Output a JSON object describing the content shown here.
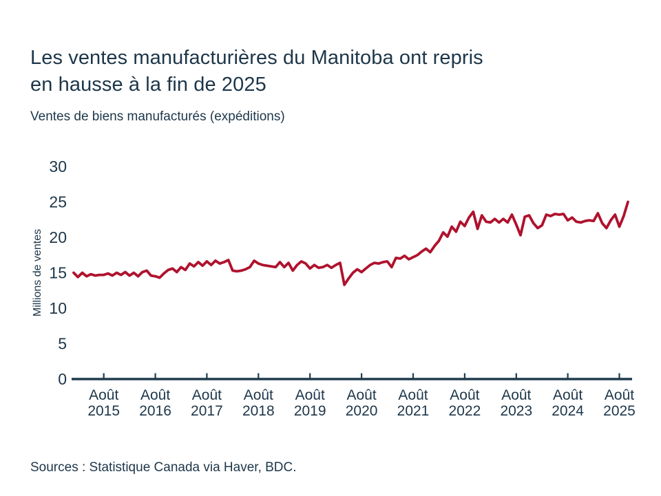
{
  "header": {
    "title_line1": "Les ventes manufacturières du Manitoba ont repris",
    "title_line2": "en hausse à la fin de 2025",
    "subtitle": "Ventes de biens manufacturés (expéditions)"
  },
  "footer": {
    "sources": "Sources : Statistique Canada via Haver, BDC."
  },
  "colors": {
    "line": "#AF122E",
    "ink": "#1D3649",
    "axis": "#1F3B4D",
    "background": "#FFFFFF"
  },
  "chart_data": {
    "type": "line",
    "title": "Les ventes manufacturières du Manitoba ont repris en hausse à la fin de 2025",
    "subtitle": "Ventes de biens manufacturés (expéditions)",
    "ylabel": "Millions de ventes",
    "xlabel": "",
    "ylim": [
      0,
      30
    ],
    "yticks": [
      0,
      5,
      10,
      15,
      20,
      25,
      30
    ],
    "grid": false,
    "legend": "none",
    "frequency": "monthly",
    "x_start": "Janvier 2015",
    "x_end": "Octobre 2025",
    "xticks": [
      {
        "month": "Août",
        "year": "2015"
      },
      {
        "month": "Août",
        "year": "2016"
      },
      {
        "month": "Août",
        "year": "2017"
      },
      {
        "month": "Août",
        "year": "2018"
      },
      {
        "month": "Août",
        "year": "2019"
      },
      {
        "month": "Août",
        "year": "2020"
      },
      {
        "month": "Août",
        "year": "2021"
      },
      {
        "month": "Août",
        "year": "2022"
      },
      {
        "month": "Août",
        "year": "2023"
      },
      {
        "month": "Août",
        "year": "2024"
      },
      {
        "month": "Août",
        "year": "2025"
      }
    ],
    "series_name": "Ventes de biens manufacturés (expéditions)",
    "values": [
      15.0,
      14.4,
      15.0,
      14.5,
      14.8,
      14.6,
      14.7,
      14.7,
      14.9,
      14.6,
      15.0,
      14.7,
      15.1,
      14.6,
      15.0,
      14.5,
      15.1,
      15.3,
      14.6,
      14.5,
      14.3,
      14.9,
      15.4,
      15.6,
      15.1,
      15.8,
      15.4,
      16.3,
      15.9,
      16.5,
      16.0,
      16.6,
      16.1,
      16.7,
      16.3,
      16.5,
      16.8,
      15.3,
      15.2,
      15.3,
      15.5,
      15.8,
      16.7,
      16.3,
      16.1,
      16.0,
      15.9,
      15.8,
      16.5,
      15.8,
      16.4,
      15.3,
      16.1,
      16.6,
      16.3,
      15.6,
      16.1,
      15.7,
      15.8,
      16.1,
      15.7,
      16.1,
      16.4,
      13.3,
      14.2,
      15.0,
      15.5,
      15.1,
      15.6,
      16.1,
      16.4,
      16.3,
      16.5,
      16.6,
      15.8,
      17.1,
      17.0,
      17.4,
      16.9,
      17.2,
      17.5,
      18.0,
      18.4,
      17.9,
      18.8,
      19.5,
      20.7,
      20.1,
      21.5,
      20.8,
      22.2,
      21.6,
      22.8,
      23.6,
      21.2,
      23.1,
      22.2,
      22.1,
      22.6,
      22.1,
      22.6,
      22.1,
      23.2,
      21.8,
      20.3,
      22.9,
      23.1,
      22.0,
      21.3,
      21.7,
      23.2,
      23.0,
      23.3,
      23.2,
      23.3,
      22.4,
      22.8,
      22.2,
      22.1,
      22.3,
      22.4,
      22.3,
      23.4,
      22.0,
      21.3,
      22.4,
      23.2,
      21.5,
      23.0,
      25.0
    ]
  }
}
